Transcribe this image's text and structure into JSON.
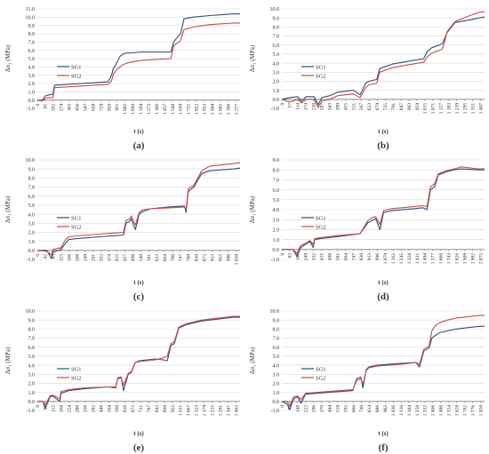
{
  "figure": {
    "legend_labels": [
      "SG1",
      "SG2"
    ],
    "colors": {
      "SG1": "#2e4d7a",
      "SG2": "#c94a44",
      "grid": "#d9d9d9",
      "axis": "#808080"
    }
  },
  "chart_data": [
    {
      "panel": "(a)",
      "type": "line",
      "xlabel": "t (s)",
      "ylabel": "Δσ₁ (MPa)",
      "ylim": [
        -1.0,
        11.0
      ],
      "yticks": [
        "-1.0",
        "0.0",
        "1.0",
        "2.0",
        "3.0",
        "4.0",
        "5.0",
        "6.0",
        "7.0",
        "8.0",
        "9.0",
        "10.0",
        "11.0"
      ],
      "xticks": [
        "0",
        "91",
        "182",
        "274",
        "365",
        "456",
        "547",
        "638",
        "729",
        "820",
        "911",
        "1 002",
        "1 093",
        "1 184",
        "1 275",
        "1 366",
        "1 457",
        "1 548",
        "1 639",
        "1 731",
        "1 822",
        "1 913",
        "2 004",
        "2 095",
        "2 186",
        "2 277"
      ],
      "xlim": [
        0,
        2350
      ],
      "grid": true,
      "legend": "left",
      "series": [
        {
          "name": "SG1",
          "x": [
            0,
            60,
            91,
            120,
            180,
            200,
            820,
            860,
            880,
            911,
            960,
            1000,
            1050,
            1100,
            1200,
            1548,
            1580,
            1639,
            1660,
            1700,
            1800,
            2000,
            2277,
            2350
          ],
          "y": [
            0.0,
            0.0,
            0.5,
            0.6,
            0.7,
            1.8,
            2.2,
            3.0,
            3.8,
            4.3,
            5.3,
            5.6,
            5.7,
            5.7,
            5.8,
            5.8,
            7.0,
            7.8,
            8.0,
            9.8,
            10.0,
            10.2,
            10.4,
            10.4
          ]
        },
        {
          "name": "SG2",
          "x": [
            0,
            60,
            91,
            120,
            180,
            200,
            820,
            860,
            880,
            911,
            960,
            1000,
            1050,
            1100,
            1200,
            1548,
            1580,
            1639,
            1660,
            1700,
            1800,
            2000,
            2277,
            2350
          ],
          "y": [
            0.0,
            -0.1,
            0.2,
            0.3,
            0.3,
            1.5,
            1.9,
            2.3,
            3.1,
            3.6,
            4.0,
            4.3,
            4.5,
            4.6,
            4.8,
            5.0,
            6.6,
            7.0,
            7.2,
            8.5,
            8.8,
            9.1,
            9.3,
            9.3
          ]
        }
      ]
    },
    {
      "panel": "(b)",
      "type": "line",
      "xlabel": "t (s)",
      "ylabel": "Δσ₁ (MPa)",
      "ylim": [
        -1.0,
        10.0
      ],
      "yticks": [
        "-1.0",
        "0.0",
        "1.0",
        "2.0",
        "3.0",
        "4.0",
        "5.0",
        "6.0",
        "7.0",
        "8.0",
        "9.0",
        "10.0"
      ],
      "xticks": [
        "0",
        "57",
        "114",
        "174",
        "230",
        "287",
        "343",
        "399",
        "455",
        "511",
        "567",
        "623",
        "679",
        "735",
        "791",
        "847",
        "903",
        "959",
        "1 015",
        "1 071",
        "1 127",
        "1 183",
        "1 239",
        "1 295",
        "1 351",
        "1 407"
      ],
      "xlim": [
        0,
        1450
      ],
      "grid": true,
      "legend": "left",
      "series": [
        {
          "name": "SG1",
          "x": [
            0,
            57,
            114,
            140,
            174,
            230,
            260,
            287,
            343,
            399,
            455,
            511,
            560,
            600,
            623,
            679,
            700,
            735,
            791,
            900,
            1015,
            1040,
            1071,
            1127,
            1150,
            1183,
            1239,
            1351,
            1407,
            1450
          ],
          "y": [
            0.0,
            0.2,
            0.3,
            -0.2,
            0.3,
            0.3,
            -0.6,
            0.2,
            0.4,
            0.8,
            0.9,
            1.0,
            0.5,
            1.8,
            2.0,
            2.2,
            3.4,
            3.6,
            3.9,
            4.2,
            4.5,
            5.3,
            5.7,
            6.0,
            6.2,
            7.4,
            8.5,
            8.8,
            9.0,
            9.1
          ]
        },
        {
          "name": "SG2",
          "x": [
            0,
            57,
            114,
            140,
            174,
            230,
            260,
            287,
            343,
            399,
            455,
            511,
            560,
            600,
            623,
            679,
            700,
            735,
            791,
            900,
            1015,
            1040,
            1071,
            1127,
            1150,
            1183,
            1239,
            1351,
            1407,
            1450
          ],
          "y": [
            0.0,
            -0.3,
            0.0,
            -0.4,
            0.0,
            0.0,
            -0.9,
            -0.2,
            0.0,
            0.4,
            0.5,
            0.6,
            0.2,
            1.3,
            1.6,
            1.8,
            3.0,
            3.2,
            3.5,
            3.8,
            4.1,
            4.7,
            5.1,
            5.4,
            5.6,
            7.5,
            8.6,
            9.3,
            9.6,
            9.7
          ]
        }
      ]
    },
    {
      "panel": "(c)",
      "type": "line",
      "xlabel": "t (s)",
      "ylabel": "Δσ₁ (MPa)",
      "ylim": [
        -1.0,
        10.0
      ],
      "yticks": [
        "-1.0",
        "0.0",
        "1.0",
        "2.0",
        "3.0",
        "4.0",
        "5.0",
        "6.0",
        "7.0",
        "8.0",
        "9.0",
        "10.0"
      ],
      "xticks": [
        "0",
        "42",
        "83",
        "125",
        "166",
        "208",
        "249",
        "291",
        "332",
        "374",
        "415",
        "457",
        "498",
        "540",
        "581",
        "623",
        "664",
        "706",
        "747",
        "789",
        "830",
        "872",
        "913",
        "955",
        "996",
        "1 038"
      ],
      "xlim": [
        0,
        1075
      ],
      "grid": true,
      "legend": "left",
      "series": [
        {
          "name": "SG1",
          "x": [
            0,
            50,
            75,
            83,
            125,
            150,
            166,
            208,
            332,
            457,
            470,
            490,
            498,
            520,
            540,
            560,
            600,
            700,
            780,
            789,
            800,
            830,
            872,
            913,
            1038,
            1075
          ],
          "y": [
            0.0,
            0.0,
            -0.9,
            -0.2,
            0.1,
            0.8,
            1.2,
            1.3,
            1.5,
            1.7,
            3.0,
            3.2,
            3.5,
            2.3,
            4.0,
            4.3,
            4.6,
            4.8,
            4.9,
            4.2,
            6.5,
            7.0,
            8.5,
            8.8,
            9.0,
            9.1
          ]
        },
        {
          "name": "SG2",
          "x": [
            0,
            50,
            75,
            83,
            125,
            150,
            166,
            208,
            332,
            457,
            470,
            490,
            498,
            520,
            540,
            560,
            600,
            700,
            780,
            789,
            800,
            830,
            872,
            913,
            1038,
            1075
          ],
          "y": [
            0.0,
            -0.1,
            -0.5,
            0.1,
            0.3,
            1.2,
            1.5,
            1.6,
            1.8,
            2.0,
            3.3,
            3.5,
            3.8,
            2.8,
            4.2,
            4.5,
            4.6,
            4.7,
            4.8,
            4.5,
            6.8,
            7.2,
            8.8,
            9.3,
            9.6,
            9.7
          ]
        }
      ]
    },
    {
      "panel": "(d)",
      "type": "line",
      "xlabel": "t (s)",
      "ylabel": "Δσ₁ (MPa)",
      "ylim": [
        -1.0,
        9.0
      ],
      "yticks": [
        "-1.0",
        "0.0",
        "1.0",
        "2.0",
        "3.0",
        "4.0",
        "5.0",
        "6.0",
        "7.0",
        "8.0",
        "9.0"
      ],
      "xticks": [
        "0",
        "83",
        "166",
        "249",
        "332",
        "415",
        "498",
        "581",
        "664",
        "747",
        "830",
        "913",
        "996",
        "1 079",
        "1 162",
        "1 245",
        "1 328",
        "1 411",
        "1 494",
        "1 577",
        "1 660",
        "1 743",
        "1 826",
        "1 909",
        "1 992",
        "2 075"
      ],
      "xlim": [
        0,
        2150
      ],
      "grid": true,
      "legend": "left",
      "series": [
        {
          "name": "SG1",
          "x": [
            0,
            120,
            160,
            200,
            249,
            300,
            332,
            350,
            415,
            600,
            830,
            913,
            960,
            996,
            1040,
            1079,
            1162,
            1400,
            1494,
            1540,
            1577,
            1620,
            1660,
            1743,
            1826,
            1909,
            2075,
            2150
          ],
          "y": [
            0.0,
            0.0,
            -0.7,
            0.2,
            0.5,
            0.8,
            0.2,
            1.0,
            1.1,
            1.3,
            1.6,
            2.7,
            2.9,
            3.1,
            2.0,
            3.7,
            3.9,
            4.1,
            4.2,
            4.0,
            6.0,
            6.3,
            7.5,
            7.8,
            8.0,
            8.1,
            8.0,
            8.0
          ]
        },
        {
          "name": "SG2",
          "x": [
            0,
            120,
            160,
            200,
            249,
            300,
            332,
            350,
            415,
            600,
            830,
            913,
            960,
            996,
            1040,
            1079,
            1162,
            1400,
            1494,
            1540,
            1577,
            1620,
            1660,
            1743,
            1826,
            1909,
            2075,
            2150
          ],
          "y": [
            0.0,
            0.0,
            -0.4,
            0.4,
            0.6,
            0.9,
            0.5,
            1.1,
            1.2,
            1.4,
            1.6,
            2.9,
            3.2,
            3.3,
            2.5,
            3.9,
            4.1,
            4.3,
            4.4,
            4.3,
            6.3,
            6.6,
            7.6,
            7.9,
            8.1,
            8.3,
            8.1,
            8.1
          ]
        }
      ]
    },
    {
      "panel": "(e)",
      "type": "line",
      "xlabel": "t (s)",
      "ylabel": "Δσ₁ (MPa)",
      "ylim": [
        -1.0,
        10.0
      ],
      "yticks": [
        "-1.0",
        "0.0",
        "1.0",
        "2.0",
        "3.0",
        "4.0",
        "5.0",
        "6.0",
        "7.0",
        "8.0",
        "9.0",
        "10.0"
      ],
      "xticks": [
        "0",
        "56",
        "112",
        "168",
        "224",
        "280",
        "336",
        "392",
        "448",
        "504",
        "560",
        "616",
        "672",
        "731",
        "787",
        "843",
        "899",
        "955",
        "1 011",
        "1 067",
        "1 123",
        "1 179",
        "1 235",
        "1 291",
        "1 347",
        "1 403"
      ],
      "xlim": [
        0,
        1450
      ],
      "grid": true,
      "legend": "left",
      "series": [
        {
          "name": "SG1",
          "x": [
            0,
            40,
            56,
            90,
            112,
            160,
            170,
            224,
            336,
            504,
            560,
            575,
            600,
            616,
            650,
            672,
            700,
            731,
            843,
            899,
            930,
            955,
            980,
            1011,
            1067,
            1179,
            1291,
            1403,
            1450
          ],
          "y": [
            0.0,
            0.0,
            -0.8,
            0.5,
            0.6,
            0.0,
            0.9,
            1.2,
            1.4,
            1.6,
            1.5,
            2.6,
            2.7,
            1.2,
            3.0,
            3.2,
            4.3,
            4.5,
            4.7,
            4.6,
            4.5,
            6.2,
            6.4,
            8.1,
            8.5,
            8.9,
            9.1,
            9.3,
            9.3
          ]
        },
        {
          "name": "SG2",
          "x": [
            0,
            40,
            56,
            90,
            112,
            160,
            170,
            224,
            336,
            504,
            560,
            575,
            600,
            616,
            650,
            672,
            700,
            731,
            843,
            899,
            930,
            955,
            980,
            1011,
            1067,
            1179,
            1291,
            1403,
            1450
          ],
          "y": [
            0.0,
            0.0,
            -0.4,
            0.6,
            0.7,
            0.3,
            1.1,
            1.3,
            1.5,
            1.6,
            1.6,
            2.5,
            2.6,
            1.8,
            3.1,
            3.3,
            4.3,
            4.4,
            4.6,
            4.8,
            5.0,
            6.4,
            6.6,
            8.2,
            8.6,
            9.0,
            9.2,
            9.4,
            9.4
          ]
        }
      ]
    },
    {
      "panel": "(f)",
      "type": "line",
      "xlabel": "t (s)",
      "ylabel": "Δσ₁ (MPa)",
      "ylim": [
        -1.0,
        10.0
      ],
      "yticks": [
        "-1.0",
        "0.0",
        "1.0",
        "2.0",
        "3.0",
        "4.0",
        "5.0",
        "6.0",
        "7.0",
        "8.0",
        "9.0",
        "10.0"
      ],
      "xticks": [
        "0",
        "74",
        "148",
        "222",
        "296",
        "370",
        "444",
        "518",
        "592",
        "666",
        "740",
        "814",
        "888",
        "962",
        "1 036",
        "1 110",
        "1 184",
        "1 258",
        "1 332",
        "1 406",
        "1 480",
        "1 554",
        "1 628",
        "1 702",
        "1 776",
        "1 850"
      ],
      "xlim": [
        0,
        1900
      ],
      "grid": true,
      "legend": "left",
      "series": [
        {
          "name": "SG1",
          "x": [
            0,
            50,
            74,
            110,
            148,
            180,
            222,
            444,
            666,
            700,
            740,
            760,
            790,
            814,
            888,
            1110,
            1258,
            1290,
            1332,
            1380,
            1406,
            1440,
            1480,
            1554,
            1628,
            1776,
            1850,
            1900
          ],
          "y": [
            0.0,
            -0.3,
            -0.9,
            0.3,
            0.5,
            -0.2,
            0.8,
            1.0,
            1.2,
            2.5,
            2.7,
            1.5,
            3.5,
            3.8,
            4.0,
            4.2,
            4.3,
            3.8,
            5.6,
            5.9,
            7.0,
            7.3,
            7.6,
            7.8,
            8.0,
            8.2,
            8.3,
            8.3
          ]
        },
        {
          "name": "SG2",
          "x": [
            0,
            50,
            74,
            110,
            148,
            180,
            222,
            444,
            666,
            700,
            740,
            760,
            790,
            814,
            888,
            1110,
            1258,
            1290,
            1332,
            1380,
            1406,
            1440,
            1480,
            1554,
            1628,
            1776,
            1850,
            1900
          ],
          "y": [
            0.0,
            0.0,
            -0.5,
            0.5,
            0.6,
            0.2,
            0.9,
            1.1,
            1.3,
            2.3,
            2.5,
            1.9,
            3.4,
            3.7,
            3.9,
            4.1,
            4.3,
            4.1,
            5.8,
            6.1,
            7.8,
            8.4,
            8.7,
            9.0,
            9.2,
            9.4,
            9.5,
            9.5
          ]
        }
      ]
    }
  ]
}
